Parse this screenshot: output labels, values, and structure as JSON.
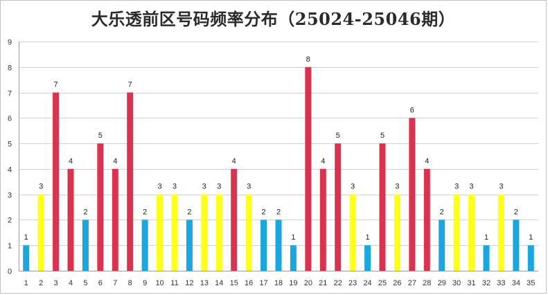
{
  "chart_data": {
    "type": "bar",
    "title": "大乐透前区号码频率分布（25024-25046期）",
    "xlabel": "",
    "ylabel": "",
    "ylim": [
      0,
      9
    ],
    "yticks": [
      0,
      1,
      2,
      3,
      4,
      5,
      6,
      7,
      8,
      9
    ],
    "grid": true,
    "legend": "none",
    "categories": [
      "1",
      "2",
      "3",
      "4",
      "5",
      "6",
      "7",
      "8",
      "9",
      "10",
      "11",
      "12",
      "13",
      "14",
      "15",
      "16",
      "17",
      "18",
      "19",
      "20",
      "21",
      "22",
      "23",
      "24",
      "25",
      "26",
      "27",
      "28",
      "29",
      "30",
      "31",
      "32",
      "33",
      "34",
      "35"
    ],
    "values": [
      1,
      3,
      7,
      4,
      2,
      5,
      4,
      7,
      2,
      3,
      3,
      2,
      3,
      3,
      4,
      3,
      2,
      2,
      1,
      8,
      4,
      5,
      3,
      1,
      5,
      3,
      6,
      4,
      2,
      3,
      3,
      1,
      3,
      2,
      1
    ],
    "color_rule": {
      "high_4_and_above": "#d9334f",
      "mid_3": "#ffff1a",
      "low_1_to_2": "#1aa7e0"
    }
  }
}
